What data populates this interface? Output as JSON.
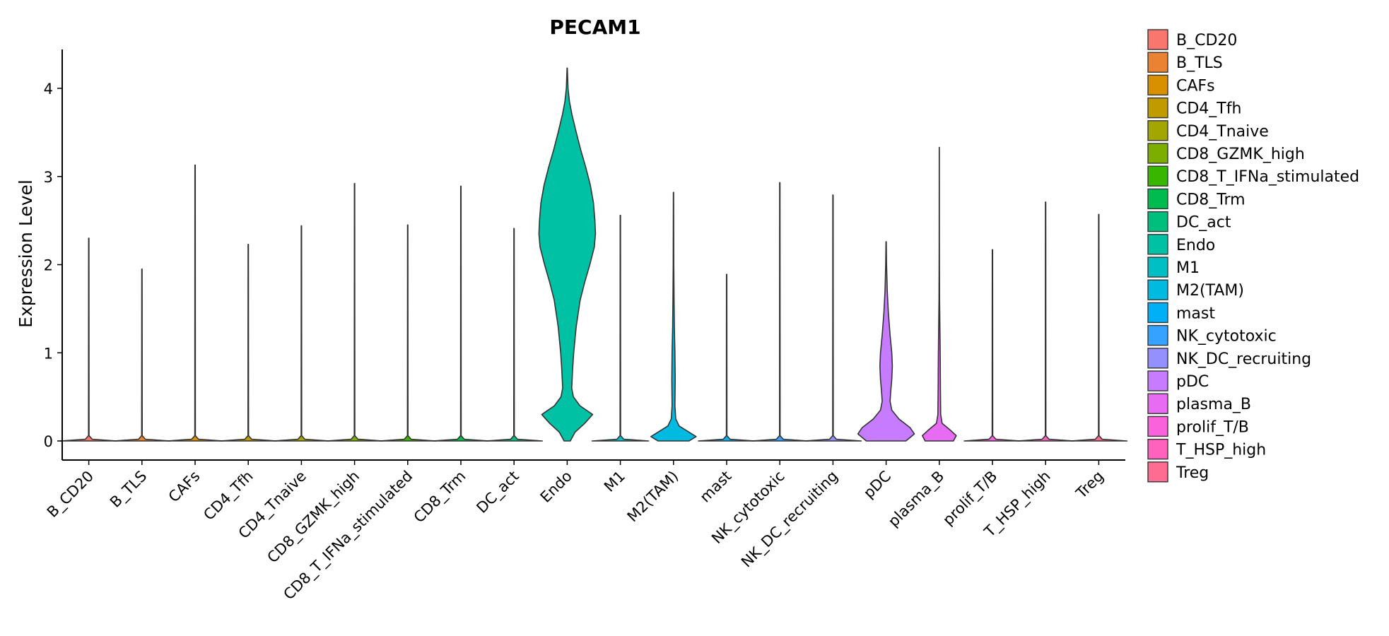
{
  "chart_data": {
    "type": "violin",
    "title": "PECAM1",
    "xlabel": "",
    "ylabel": "Expression Level",
    "ylim": [
      -0.21,
      4.5
    ],
    "yticks": [
      0,
      1,
      2,
      3,
      4
    ],
    "grid": false,
    "legend_position": "right",
    "categories": [
      "B_CD20",
      "B_TLS",
      "CAFs",
      "CD4_Tfh",
      "CD4_Tnaive",
      "CD8_GZMK_high",
      "CD8_T_IFNa_stimulated",
      "CD8_Trm",
      "DC_act",
      "Endo",
      "M1",
      "M2(TAM)",
      "mast",
      "NK_cytotoxic",
      "NK_DC_recruiting",
      "pDC",
      "plasma_B",
      "prolif_T/B",
      "T_HSP_high",
      "Treg"
    ],
    "colors": [
      "#F8766D",
      "#EA8331",
      "#D89000",
      "#C09B00",
      "#A3A500",
      "#7CAE00",
      "#39B600",
      "#00BB4E",
      "#00BF7D",
      "#00C1A3",
      "#00BFC4",
      "#00BAE0",
      "#00B0F6",
      "#35A2FF",
      "#9590FF",
      "#C77CFF",
      "#E76BF3",
      "#FA62DB",
      "#FF62BC",
      "#FF6C91"
    ],
    "max_values": [
      2.3,
      1.95,
      3.13,
      2.23,
      2.44,
      2.92,
      2.45,
      2.89,
      2.41,
      4.23,
      2.56,
      2.82,
      1.89,
      2.93,
      2.79,
      2.26,
      3.33,
      2.17,
      2.71,
      2.57
    ],
    "density_profiles": [
      null,
      null,
      null,
      null,
      null,
      null,
      null,
      null,
      null,
      [
        [
          0,
          0.11
        ],
        [
          0.1,
          0.28
        ],
        [
          0.2,
          0.62
        ],
        [
          0.3,
          0.9
        ],
        [
          0.4,
          0.45
        ],
        [
          0.5,
          0.22
        ],
        [
          0.6,
          0.16
        ],
        [
          0.8,
          0.19
        ],
        [
          1.0,
          0.23
        ],
        [
          1.3,
          0.32
        ],
        [
          1.6,
          0.46
        ],
        [
          1.8,
          0.62
        ],
        [
          2.0,
          0.8
        ],
        [
          2.2,
          0.96
        ],
        [
          2.35,
          1.0
        ],
        [
          2.5,
          0.98
        ],
        [
          2.7,
          0.93
        ],
        [
          2.9,
          0.82
        ],
        [
          3.1,
          0.66
        ],
        [
          3.3,
          0.48
        ],
        [
          3.5,
          0.32
        ],
        [
          3.7,
          0.17
        ],
        [
          3.85,
          0.08
        ],
        [
          4.0,
          0.03
        ],
        [
          4.23,
          0.005
        ]
      ],
      null,
      [
        [
          0,
          0.55
        ],
        [
          0.05,
          0.8
        ],
        [
          0.1,
          0.55
        ],
        [
          0.17,
          0.2
        ],
        [
          0.25,
          0.08
        ],
        [
          0.4,
          0.05
        ],
        [
          0.7,
          0.06
        ],
        [
          1.0,
          0.05
        ],
        [
          1.3,
          0.03
        ],
        [
          1.6,
          0.02
        ],
        [
          2.0,
          0.01
        ],
        [
          2.82,
          0.005
        ]
      ],
      null,
      null,
      null,
      [
        [
          0,
          0.7
        ],
        [
          0.08,
          1.0
        ],
        [
          0.15,
          0.85
        ],
        [
          0.25,
          0.45
        ],
        [
          0.35,
          0.2
        ],
        [
          0.45,
          0.14
        ],
        [
          0.55,
          0.16
        ],
        [
          0.7,
          0.2
        ],
        [
          0.85,
          0.22
        ],
        [
          1.0,
          0.2
        ],
        [
          1.2,
          0.14
        ],
        [
          1.45,
          0.08
        ],
        [
          1.7,
          0.04
        ],
        [
          2.0,
          0.015
        ],
        [
          2.26,
          0.005
        ]
      ],
      [
        [
          0,
          0.5
        ],
        [
          0.06,
          0.6
        ],
        [
          0.12,
          0.4
        ],
        [
          0.2,
          0.1
        ],
        [
          0.3,
          0.05
        ],
        [
          0.6,
          0.04
        ],
        [
          0.9,
          0.035
        ],
        [
          1.2,
          0.025
        ],
        [
          1.6,
          0.01
        ],
        [
          2.2,
          0.004
        ],
        [
          3.33,
          0.002
        ]
      ],
      null,
      null,
      null
    ]
  }
}
